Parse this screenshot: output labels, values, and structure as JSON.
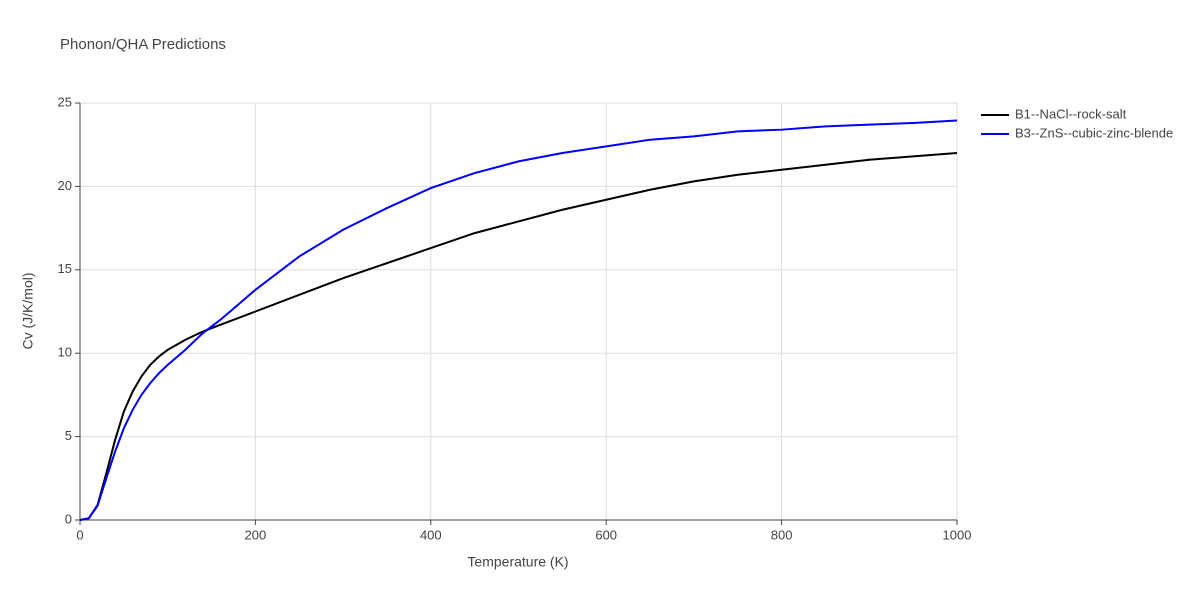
{
  "chart_data": {
    "type": "line",
    "title": "Phonon/QHA Predictions",
    "x_label": "Temperature (K)",
    "y_label": "Cv (J/K/mol)",
    "x": [
      0,
      10,
      20,
      30,
      40,
      50,
      60,
      70,
      80,
      90,
      100,
      120,
      140,
      160,
      180,
      200,
      250,
      300,
      350,
      400,
      450,
      500,
      550,
      600,
      650,
      700,
      750,
      800,
      850,
      900,
      950,
      1000
    ],
    "series": [
      {
        "name": "B1--NaCl--rock-salt",
        "color": "#000000",
        "values": [
          0,
          0.1,
          0.9,
          2.8,
          4.8,
          6.5,
          7.7,
          8.6,
          9.3,
          9.8,
          10.2,
          10.8,
          11.3,
          11.7,
          12.1,
          12.5,
          13.5,
          14.5,
          15.4,
          16.3,
          17.2,
          17.9,
          18.6,
          19.2,
          19.8,
          20.3,
          20.7,
          21.0,
          21.3,
          21.6,
          21.8,
          22.0
        ]
      },
      {
        "name": "B3--ZnS--cubic-zinc-blende",
        "color": "#0000ff",
        "values": [
          0,
          0.1,
          0.85,
          2.5,
          4.1,
          5.5,
          6.6,
          7.5,
          8.2,
          8.8,
          9.3,
          10.2,
          11.2,
          12.0,
          12.9,
          13.8,
          15.8,
          17.4,
          18.7,
          19.9,
          20.8,
          21.5,
          22.0,
          22.4,
          22.8,
          23.0,
          23.3,
          23.4,
          23.6,
          23.7,
          23.8,
          23.95
        ]
      }
    ],
    "xlim": [
      0,
      1000
    ],
    "xticks": [
      0,
      200,
      400,
      600,
      800,
      1000
    ],
    "ylim": [
      0,
      25
    ],
    "yticks": [
      0,
      5,
      10,
      15,
      20,
      25
    ],
    "grid": true,
    "legend": "right"
  }
}
